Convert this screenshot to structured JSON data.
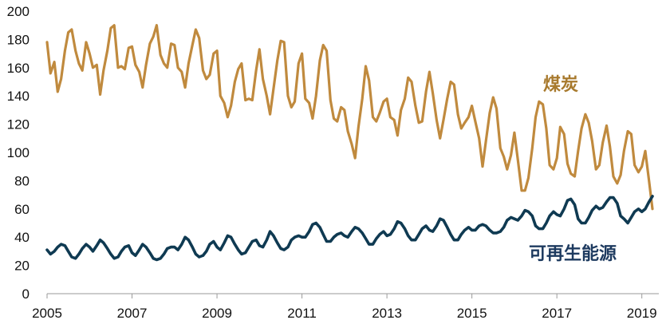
{
  "chart_data": {
    "type": "line",
    "title": "",
    "xlabel": "",
    "ylabel": "",
    "xlim": [
      2005.0,
      2019.4
    ],
    "ylim": [
      0,
      200
    ],
    "yticks": [
      0,
      20,
      40,
      60,
      80,
      100,
      120,
      140,
      160,
      180,
      200
    ],
    "xticks": [
      2005,
      2007,
      2009,
      2011,
      2013,
      2015,
      2017,
      2019
    ],
    "grid": false,
    "legend": "none",
    "colors": {
      "coal": "#c08a3e",
      "renewables": "#0f3a52",
      "label_coal": "#a87a2e",
      "label_renewables": "#1d3a5f",
      "axis": "#9a9a9a"
    },
    "series": [
      {
        "key": "coal",
        "name": "煤炭",
        "x": [
          2005.0,
          2005.08,
          2005.17,
          2005.25,
          2005.33,
          2005.42,
          2005.5,
          2005.58,
          2005.67,
          2005.75,
          2005.83,
          2005.92,
          2006.0,
          2006.08,
          2006.17,
          2006.25,
          2006.33,
          2006.42,
          2006.5,
          2006.58,
          2006.67,
          2006.75,
          2006.83,
          2006.92,
          2007.0,
          2007.08,
          2007.17,
          2007.25,
          2007.33,
          2007.42,
          2007.5,
          2007.58,
          2007.67,
          2007.75,
          2007.83,
          2007.92,
          2008.0,
          2008.08,
          2008.17,
          2008.25,
          2008.33,
          2008.42,
          2008.5,
          2008.58,
          2008.67,
          2008.75,
          2008.83,
          2008.92,
          2009.0,
          2009.08,
          2009.17,
          2009.25,
          2009.33,
          2009.42,
          2009.5,
          2009.58,
          2009.67,
          2009.75,
          2009.83,
          2009.92,
          2010.0,
          2010.08,
          2010.17,
          2010.25,
          2010.33,
          2010.42,
          2010.5,
          2010.58,
          2010.67,
          2010.75,
          2010.83,
          2010.92,
          2011.0,
          2011.08,
          2011.17,
          2011.25,
          2011.33,
          2011.42,
          2011.5,
          2011.58,
          2011.67,
          2011.75,
          2011.83,
          2011.92,
          2012.0,
          2012.08,
          2012.17,
          2012.25,
          2012.33,
          2012.42,
          2012.5,
          2012.58,
          2012.67,
          2012.75,
          2012.83,
          2012.92,
          2013.0,
          2013.08,
          2013.17,
          2013.25,
          2013.33,
          2013.42,
          2013.5,
          2013.58,
          2013.67,
          2013.75,
          2013.83,
          2013.92,
          2014.0,
          2014.08,
          2014.17,
          2014.25,
          2014.33,
          2014.42,
          2014.5,
          2014.58,
          2014.67,
          2014.75,
          2014.83,
          2014.92,
          2015.0,
          2015.08,
          2015.17,
          2015.25,
          2015.33,
          2015.42,
          2015.5,
          2015.58,
          2015.67,
          2015.75,
          2015.83,
          2015.92,
          2016.0,
          2016.08,
          2016.17,
          2016.25,
          2016.33,
          2016.42,
          2016.5,
          2016.58,
          2016.67,
          2016.75,
          2016.83,
          2016.92,
          2017.0,
          2017.08,
          2017.17,
          2017.25,
          2017.33,
          2017.42,
          2017.5,
          2017.58,
          2017.67,
          2017.75,
          2017.83,
          2017.92,
          2018.0,
          2018.08,
          2018.17,
          2018.25,
          2018.33,
          2018.42,
          2018.5,
          2018.58,
          2018.67,
          2018.75,
          2018.83,
          2018.92,
          2019.0,
          2019.08,
          2019.17,
          2019.25
        ],
        "values": [
          178,
          156,
          164,
          143,
          152,
          172,
          185,
          187,
          172,
          163,
          158,
          178,
          170,
          160,
          162,
          141,
          158,
          172,
          188,
          190,
          160,
          161,
          159,
          174,
          175,
          162,
          157,
          146,
          162,
          177,
          182,
          190,
          169,
          163,
          160,
          177,
          176,
          160,
          157,
          146,
          163,
          176,
          187,
          181,
          158,
          152,
          155,
          170,
          172,
          140,
          135,
          125,
          133,
          150,
          159,
          163,
          137,
          138,
          137,
          158,
          173,
          152,
          140,
          127,
          145,
          165,
          179,
          178,
          140,
          132,
          136,
          163,
          170,
          138,
          135,
          124,
          140,
          165,
          176,
          172,
          137,
          124,
          122,
          132,
          130,
          115,
          106,
          96,
          118,
          138,
          161,
          151,
          125,
          122,
          128,
          136,
          138,
          125,
          123,
          112,
          130,
          138,
          153,
          150,
          133,
          121,
          122,
          143,
          157,
          142,
          123,
          110,
          123,
          138,
          150,
          148,
          127,
          117,
          121,
          125,
          133,
          122,
          110,
          90,
          108,
          128,
          139,
          131,
          103,
          97,
          88,
          98,
          114,
          95,
          73,
          73,
          82,
          103,
          125,
          136,
          134,
          117,
          91,
          88,
          96,
          118,
          113,
          92,
          85,
          83,
          101,
          117,
          127,
          121,
          108,
          88,
          91,
          107,
          119,
          104,
          83,
          78,
          84,
          101,
          115,
          113,
          91,
          86,
          90,
          101,
          80,
          60
        ]
      },
      {
        "key": "renewables",
        "name": "可再生能源",
        "x": [
          2005.0,
          2005.08,
          2005.17,
          2005.25,
          2005.33,
          2005.42,
          2005.5,
          2005.58,
          2005.67,
          2005.75,
          2005.83,
          2005.92,
          2006.0,
          2006.08,
          2006.17,
          2006.25,
          2006.33,
          2006.42,
          2006.5,
          2006.58,
          2006.67,
          2006.75,
          2006.83,
          2006.92,
          2007.0,
          2007.08,
          2007.17,
          2007.25,
          2007.33,
          2007.42,
          2007.5,
          2007.58,
          2007.67,
          2007.75,
          2007.83,
          2007.92,
          2008.0,
          2008.08,
          2008.17,
          2008.25,
          2008.33,
          2008.42,
          2008.5,
          2008.58,
          2008.67,
          2008.75,
          2008.83,
          2008.92,
          2009.0,
          2009.08,
          2009.17,
          2009.25,
          2009.33,
          2009.42,
          2009.5,
          2009.58,
          2009.67,
          2009.75,
          2009.83,
          2009.92,
          2010.0,
          2010.08,
          2010.17,
          2010.25,
          2010.33,
          2010.42,
          2010.5,
          2010.58,
          2010.67,
          2010.75,
          2010.83,
          2010.92,
          2011.0,
          2011.08,
          2011.17,
          2011.25,
          2011.33,
          2011.42,
          2011.5,
          2011.58,
          2011.67,
          2011.75,
          2011.83,
          2011.92,
          2012.0,
          2012.08,
          2012.17,
          2012.25,
          2012.33,
          2012.42,
          2012.5,
          2012.58,
          2012.67,
          2012.75,
          2012.83,
          2012.92,
          2013.0,
          2013.08,
          2013.17,
          2013.25,
          2013.33,
          2013.42,
          2013.5,
          2013.58,
          2013.67,
          2013.75,
          2013.83,
          2013.92,
          2014.0,
          2014.08,
          2014.17,
          2014.25,
          2014.33,
          2014.42,
          2014.5,
          2014.58,
          2014.67,
          2014.75,
          2014.83,
          2014.92,
          2015.0,
          2015.08,
          2015.17,
          2015.25,
          2015.33,
          2015.42,
          2015.5,
          2015.58,
          2015.67,
          2015.75,
          2015.83,
          2015.92,
          2016.0,
          2016.08,
          2016.17,
          2016.25,
          2016.33,
          2016.42,
          2016.5,
          2016.58,
          2016.67,
          2016.75,
          2016.83,
          2016.92,
          2017.0,
          2017.08,
          2017.17,
          2017.25,
          2017.33,
          2017.42,
          2017.5,
          2017.58,
          2017.67,
          2017.75,
          2017.83,
          2017.92,
          2018.0,
          2018.08,
          2018.17,
          2018.25,
          2018.33,
          2018.42,
          2018.5,
          2018.58,
          2018.67,
          2018.75,
          2018.83,
          2018.92,
          2019.0,
          2019.08,
          2019.17,
          2019.25
        ],
        "values": [
          31,
          28,
          30,
          33,
          35,
          34,
          30,
          26,
          25,
          28,
          32,
          35,
          33,
          30,
          34,
          38,
          36,
          32,
          28,
          25,
          26,
          30,
          33,
          34,
          29,
          27,
          31,
          35,
          33,
          29,
          25,
          24,
          25,
          28,
          32,
          33,
          33,
          31,
          35,
          40,
          38,
          33,
          28,
          26,
          27,
          30,
          35,
          37,
          33,
          31,
          36,
          41,
          40,
          35,
          31,
          28,
          29,
          33,
          37,
          38,
          34,
          33,
          38,
          44,
          41,
          36,
          32,
          31,
          33,
          38,
          40,
          41,
          40,
          40,
          44,
          49,
          50,
          47,
          42,
          37,
          37,
          40,
          42,
          43,
          41,
          40,
          44,
          47,
          46,
          43,
          39,
          35,
          35,
          39,
          42,
          44,
          41,
          42,
          46,
          51,
          50,
          46,
          41,
          38,
          38,
          42,
          46,
          48,
          45,
          44,
          48,
          53,
          52,
          47,
          42,
          38,
          38,
          42,
          45,
          47,
          45,
          45,
          48,
          49,
          48,
          45,
          43,
          43,
          44,
          47,
          52,
          54,
          53,
          52,
          55,
          59,
          58,
          55,
          48,
          46,
          46,
          50,
          55,
          58,
          56,
          55,
          60,
          66,
          67,
          63,
          53,
          50,
          50,
          54,
          59,
          62,
          60,
          61,
          65,
          68,
          68,
          64,
          55,
          53,
          50,
          54,
          58,
          60,
          58,
          60,
          65,
          69
        ]
      }
    ],
    "annotations": [
      {
        "series": "coal",
        "text": "煤炭"
      },
      {
        "series": "renewables",
        "text": "可再生能源"
      }
    ]
  }
}
